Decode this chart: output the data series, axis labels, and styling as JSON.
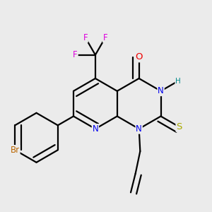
{
  "background_color": "#ebebeb",
  "atom_colors": {
    "C": "#000000",
    "N": "#0000ee",
    "O": "#ee0000",
    "S": "#aaaa00",
    "F": "#dd00dd",
    "Br": "#bb6600",
    "H": "#008888"
  },
  "bond_color": "#000000",
  "bond_width": 1.6
}
